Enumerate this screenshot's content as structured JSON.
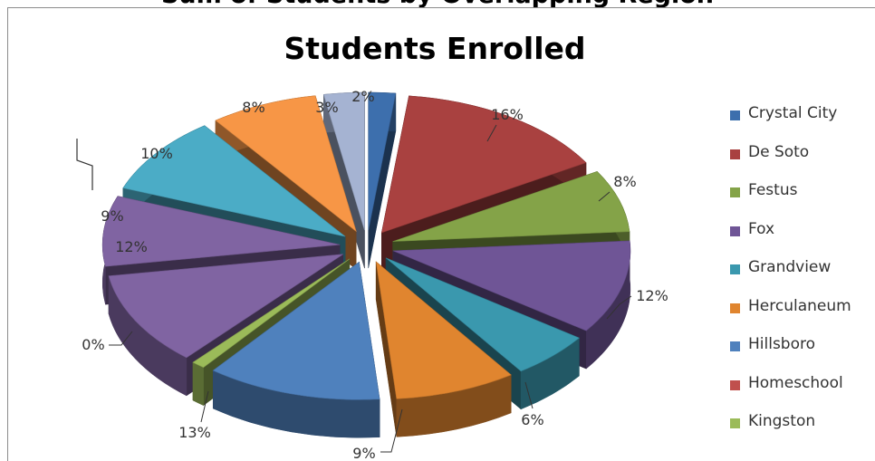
{
  "page_top_title": "Sum of Students by Overlapping Region",
  "chart_data": {
    "type": "pie",
    "style": "3d-exploded",
    "title": "Students Enrolled",
    "legend_position": "right",
    "slices": [
      {
        "name": "Crystal City",
        "percent": 2,
        "label": "2%",
        "color": "#3d6fad"
      },
      {
        "name": "De Soto",
        "percent": 16,
        "label": "16%",
        "color": "#a94140"
      },
      {
        "name": "Festus",
        "percent": 8,
        "label": "8%",
        "color": "#84a348"
      },
      {
        "name": "Fox",
        "percent": 12,
        "label": "12%",
        "color": "#6f5596"
      },
      {
        "name": "Grandview",
        "percent": 6,
        "label": "6%",
        "color": "#3a98ae"
      },
      {
        "name": "Herculaneum",
        "percent": 9,
        "label": "9%",
        "color": "#e0852f"
      },
      {
        "name": "Hillsboro",
        "percent": 13,
        "label": "13%",
        "color": "#4f81bd"
      },
      {
        "name": "Homeschool",
        "percent": 0,
        "label": "0%",
        "color": "#c0504d"
      },
      {
        "name": "Kingston",
        "percent": 1,
        "label": "",
        "color": "#9bbb59"
      },
      {
        "name": "",
        "percent": 12,
        "label": "12%",
        "color": "#8064a2"
      },
      {
        "name": "",
        "percent": 9,
        "label": "9%",
        "color": "#8064a2"
      },
      {
        "name": "",
        "percent": 10,
        "label": "10%",
        "color": "#4bacc6"
      },
      {
        "name": "",
        "percent": 8,
        "label": "8%",
        "color": "#f79646"
      },
      {
        "name": "",
        "percent": 3,
        "label": "3%",
        "color": "#a5b3d2"
      }
    ]
  }
}
